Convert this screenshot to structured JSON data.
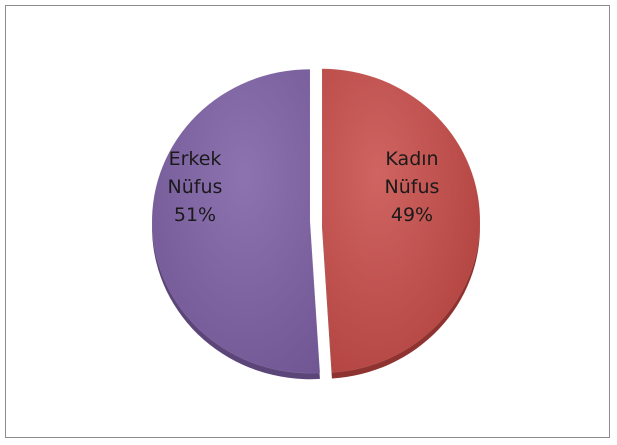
{
  "chart_data": {
    "type": "pie",
    "slices": [
      {
        "name": "Kadın Nüfus",
        "label_lines": [
          "Kadın",
          "Nüfus",
          "49%"
        ],
        "value": 49,
        "color": "#c0504d"
      },
      {
        "name": "Erkek Nüfus",
        "label_lines": [
          "Erkek",
          "Nüfus",
          "51%"
        ],
        "value": 51,
        "color": "#8064a2"
      }
    ],
    "title": "",
    "legend": "none",
    "style": "3d-exploded"
  }
}
